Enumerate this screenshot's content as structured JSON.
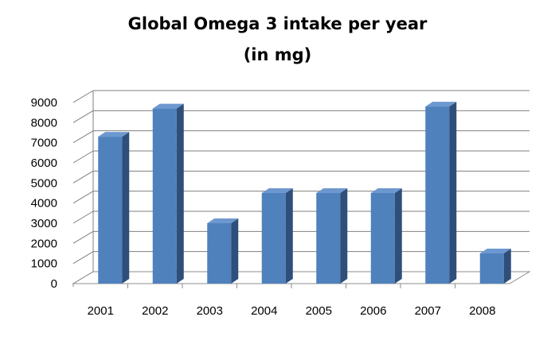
{
  "chart_data": {
    "type": "bar",
    "title_lines": [
      "Global Omega 3 intake per year",
      "(in mg)"
    ],
    "title": "Global Omega 3 intake per year (in mg)",
    "categories": [
      "2001",
      "2002",
      "2003",
      "2004",
      "2005",
      "2006",
      "2007",
      "2008"
    ],
    "values": [
      7300,
      8700,
      3000,
      4500,
      4500,
      4500,
      8800,
      1500
    ],
    "yticks": [
      "0",
      "1000",
      "2000",
      "3000",
      "4000",
      "5000",
      "6000",
      "7000",
      "8000",
      "9000"
    ],
    "ylim": [
      0,
      9000
    ],
    "xlabel": "",
    "ylabel": "",
    "grid": true,
    "legend": "none",
    "colors": {
      "bar_front": "#4f81bd",
      "bar_side": "#2e4f7a",
      "bar_top": "#6d98cf",
      "grid": "#7f7f7f",
      "floor": "#8c8c8c"
    }
  }
}
